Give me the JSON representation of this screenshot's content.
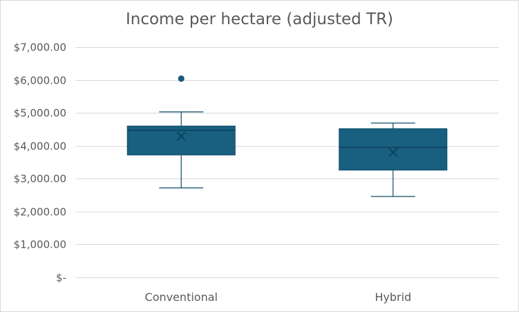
{
  "chart_data": {
    "type": "boxplot",
    "title": "Income per hectare (adjusted TR)",
    "xlabel": "",
    "ylabel": "",
    "ylim": [
      0,
      7000
    ],
    "y_ticks": [
      0,
      1000,
      2000,
      3000,
      4000,
      5000,
      6000,
      7000
    ],
    "y_tick_labels": [
      "$-",
      "$1,000.00",
      "$2,000.00",
      "$3,000.00",
      "$4,000.00",
      "$5,000.00",
      "$6,000.00",
      "$7,000.00"
    ],
    "grid": true,
    "legend": "none",
    "categories": [
      "Conventional",
      "Hybrid"
    ],
    "boxes": [
      {
        "category": "Conventional",
        "min": 2720,
        "q1": 3720,
        "median": 4470,
        "q3": 4600,
        "max": 5030,
        "mean": 4290,
        "outliers": [
          6040
        ]
      },
      {
        "category": "Hybrid",
        "min": 2460,
        "q1": 3260,
        "median": 3950,
        "q3": 4520,
        "max": 4690,
        "mean": 3800,
        "outliers": []
      }
    ],
    "colors": {
      "box_fill": "#185f80",
      "box_stroke": "#0f4a66",
      "grid": "#d9d9d9",
      "text": "#595959"
    }
  }
}
